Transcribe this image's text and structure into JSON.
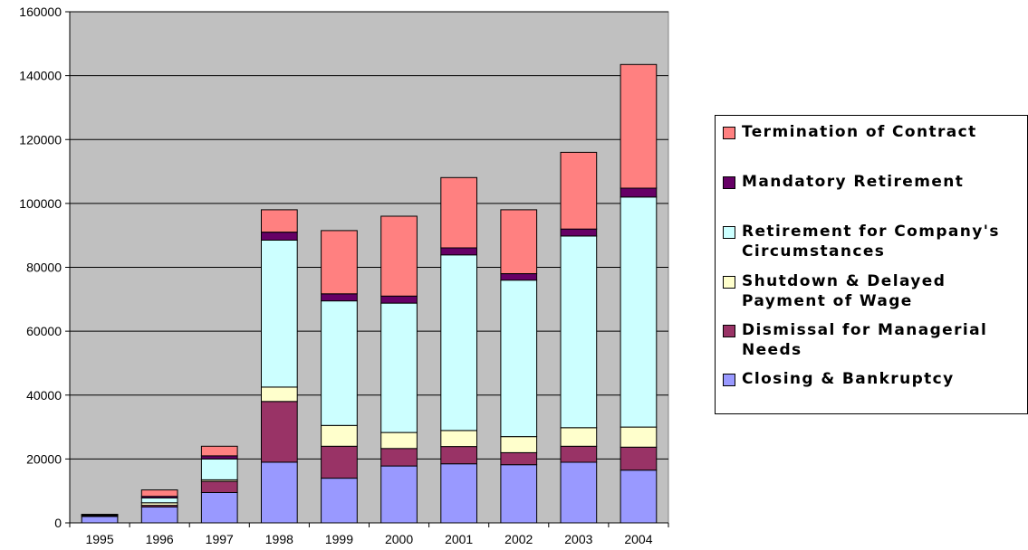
{
  "chart_data": {
    "type": "bar",
    "stacked": true,
    "categories": [
      "1995",
      "1996",
      "1997",
      "1998",
      "1999",
      "2000",
      "2001",
      "2002",
      "2003",
      "2004"
    ],
    "ylim": [
      0,
      160000
    ],
    "yticks": [
      "0",
      "20000",
      "40000",
      "60000",
      "80000",
      "100000",
      "120000",
      "140000",
      "160000"
    ],
    "grid": true,
    "plot_background": "#c0c0c0",
    "legend_position": "right",
    "series": [
      {
        "name": "Closing & Bankruptcy",
        "color": "#9999ff",
        "values": [
          2000,
          5000,
          9500,
          19000,
          14000,
          17800,
          18500,
          18200,
          19000,
          16500
        ]
      },
      {
        "name": "Dismissal for Managerial Needs",
        "color": "#993366",
        "values": [
          300,
          500,
          3500,
          19000,
          10000,
          5500,
          5400,
          3800,
          5000,
          7200
        ]
      },
      {
        "name": "Shutdown & Delayed Payment of Wage",
        "color": "#ffffcc",
        "values": [
          100,
          800,
          500,
          4500,
          6500,
          5000,
          5000,
          5000,
          5800,
          6300
        ]
      },
      {
        "name": "Retirement for Company's Circumstances",
        "color": "#ccffff",
        "values": [
          200,
          1500,
          6500,
          46000,
          39000,
          40500,
          55000,
          49000,
          60000,
          72000
        ]
      },
      {
        "name": "Mandatory Retirement",
        "color": "#660066",
        "values": [
          50,
          500,
          1000,
          2500,
          2200,
          2200,
          2200,
          2000,
          2200,
          2800
        ]
      },
      {
        "name": "Termination of Contract",
        "color": "#ff8080",
        "values": [
          0,
          2000,
          3000,
          7000,
          19800,
          25000,
          22000,
          20000,
          24000,
          38700
        ]
      }
    ]
  },
  "legend": {
    "items": [
      {
        "label": "Termination of Contract",
        "color": "#ff8080"
      },
      {
        "label": "Mandatory Retirement",
        "color": "#660066"
      },
      {
        "label": "Retirement for Company's\nCircumstances",
        "color": "#ccffff"
      },
      {
        "label": "Shutdown & Delayed\nPayment of Wage",
        "color": "#ffffcc"
      },
      {
        "label": "Dismissal for Managerial\nNeeds",
        "color": "#993366"
      },
      {
        "label": "Closing & Bankruptcy",
        "color": "#9999ff"
      }
    ]
  }
}
